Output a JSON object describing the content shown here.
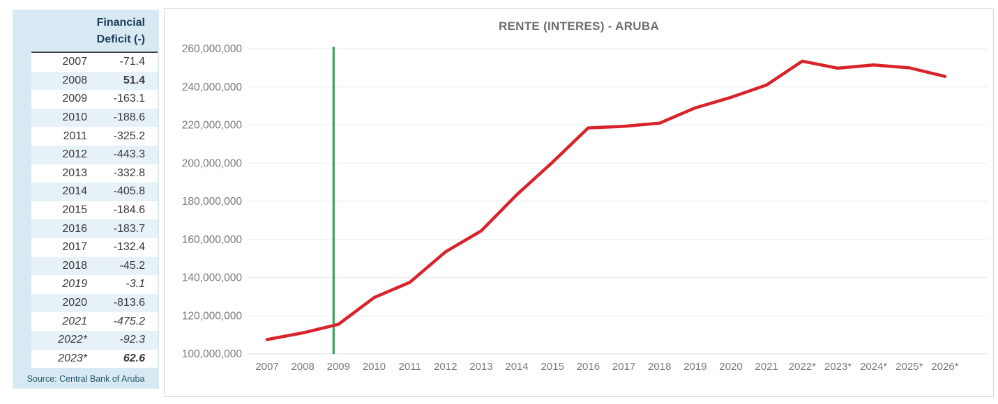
{
  "table": {
    "header": {
      "line1": "Financial",
      "line2": "Deficit (-)"
    },
    "rows": [
      {
        "year": "2007",
        "value": "-71.4",
        "italic": false,
        "bold": false
      },
      {
        "year": "2008",
        "value": "51.4",
        "italic": false,
        "bold": true
      },
      {
        "year": "2009",
        "value": "-163.1",
        "italic": false,
        "bold": false
      },
      {
        "year": "2010",
        "value": "-188.6",
        "italic": false,
        "bold": false
      },
      {
        "year": "2011",
        "value": "-325.2",
        "italic": false,
        "bold": false
      },
      {
        "year": "2012",
        "value": "-443.3",
        "italic": false,
        "bold": false
      },
      {
        "year": "2013",
        "value": "-332.8",
        "italic": false,
        "bold": false
      },
      {
        "year": "2014",
        "value": "-405.8",
        "italic": false,
        "bold": false
      },
      {
        "year": "2015",
        "value": "-184.6",
        "italic": false,
        "bold": false
      },
      {
        "year": "2016",
        "value": "-183.7",
        "italic": false,
        "bold": false
      },
      {
        "year": "2017",
        "value": "-132.4",
        "italic": false,
        "bold": false
      },
      {
        "year": "2018",
        "value": "-45.2",
        "italic": false,
        "bold": false
      },
      {
        "year": "2019",
        "value": "-3.1",
        "italic": true,
        "bold": false
      },
      {
        "year": "2020",
        "value": "-813.6",
        "italic": false,
        "bold": false
      },
      {
        "year": "2021",
        "value": "-475.2",
        "italic": true,
        "bold": false
      },
      {
        "year": "2022*",
        "value": "-92.3",
        "italic": true,
        "bold": false
      },
      {
        "year": "2023*",
        "value": "62.6",
        "italic": true,
        "bold": true
      }
    ],
    "source": "Source: Central Bank of Aruba"
  },
  "chart_data": {
    "type": "line",
    "title": "RENTE (INTERES) - ARUBA",
    "categories": [
      "2007",
      "2008",
      "2009",
      "2010",
      "2011",
      "2012",
      "2013",
      "2014",
      "2015",
      "2016",
      "2017",
      "2018",
      "2019",
      "2020",
      "2021",
      "2022*",
      "2023*",
      "2024*",
      "2025*",
      "2026*"
    ],
    "values": [
      107500000,
      111000000,
      115500000,
      129500000,
      137500000,
      153500000,
      164500000,
      183500000,
      200500000,
      218500000,
      219300000,
      221000000,
      229000000,
      234500000,
      241000000,
      253500000,
      249800000,
      251500000,
      250000000,
      245500000
    ],
    "line_color": "#d9232a",
    "ylim": [
      100000000,
      260000000
    ],
    "ytick_step": 20000000,
    "grid": true,
    "legend": "none",
    "vline": {
      "category": "2009",
      "color": "#2f9e4b"
    }
  }
}
